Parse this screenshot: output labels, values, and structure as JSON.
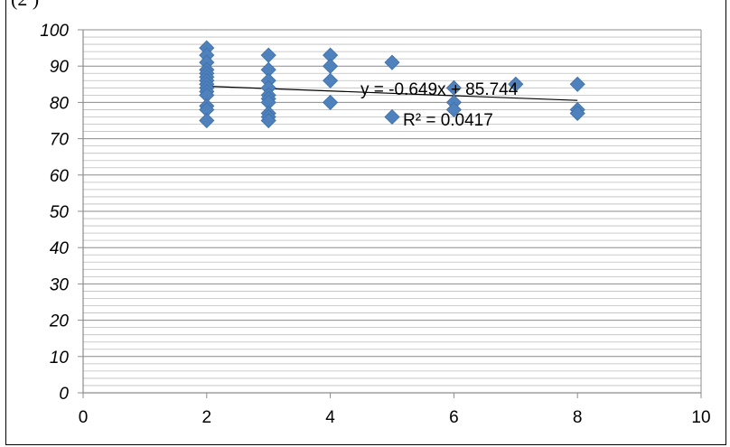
{
  "page": {
    "top_clip_text": "(2 )"
  },
  "chart_data": {
    "type": "scatter",
    "title": "",
    "xlabel": "",
    "ylabel": "",
    "xlim": [
      0,
      10
    ],
    "ylim": [
      0,
      100
    ],
    "x_ticks": [
      "0",
      "2",
      "4",
      "6",
      "8",
      "10"
    ],
    "y_ticks": [
      "0",
      "10",
      "20",
      "30",
      "40",
      "50",
      "60",
      "70",
      "80",
      "90",
      "100"
    ],
    "grid": true,
    "legend": "none",
    "marker_color": "#4F81BD",
    "trendline": {
      "type": "linear",
      "slope": -0.649,
      "intercept": 85.744,
      "x_range": [
        2,
        8
      ],
      "equation_label": "y = -0.649x + 85.744",
      "r2_label": "R² = 0.0417"
    },
    "series": [
      {
        "points": [
          [
            2,
            95
          ],
          [
            2,
            93
          ],
          [
            2,
            91
          ],
          [
            2,
            89
          ],
          [
            2,
            88
          ],
          [
            2,
            87
          ],
          [
            2,
            86
          ],
          [
            2,
            85
          ],
          [
            2,
            84
          ],
          [
            2,
            83
          ],
          [
            2,
            82
          ],
          [
            2,
            79
          ],
          [
            2,
            78
          ],
          [
            2,
            75
          ],
          [
            3,
            93
          ],
          [
            3,
            89
          ],
          [
            3,
            86
          ],
          [
            3,
            84
          ],
          [
            3,
            82
          ],
          [
            3,
            81
          ],
          [
            3,
            80
          ],
          [
            3,
            77
          ],
          [
            3,
            76
          ],
          [
            3,
            75
          ],
          [
            4,
            93
          ],
          [
            4,
            90
          ],
          [
            4,
            86
          ],
          [
            4,
            80
          ],
          [
            5,
            91
          ],
          [
            5,
            76
          ],
          [
            6,
            84
          ],
          [
            6,
            80
          ],
          [
            6,
            78
          ],
          [
            7,
            85
          ],
          [
            8,
            85
          ],
          [
            8,
            78
          ],
          [
            8,
            77
          ]
        ]
      }
    ]
  }
}
